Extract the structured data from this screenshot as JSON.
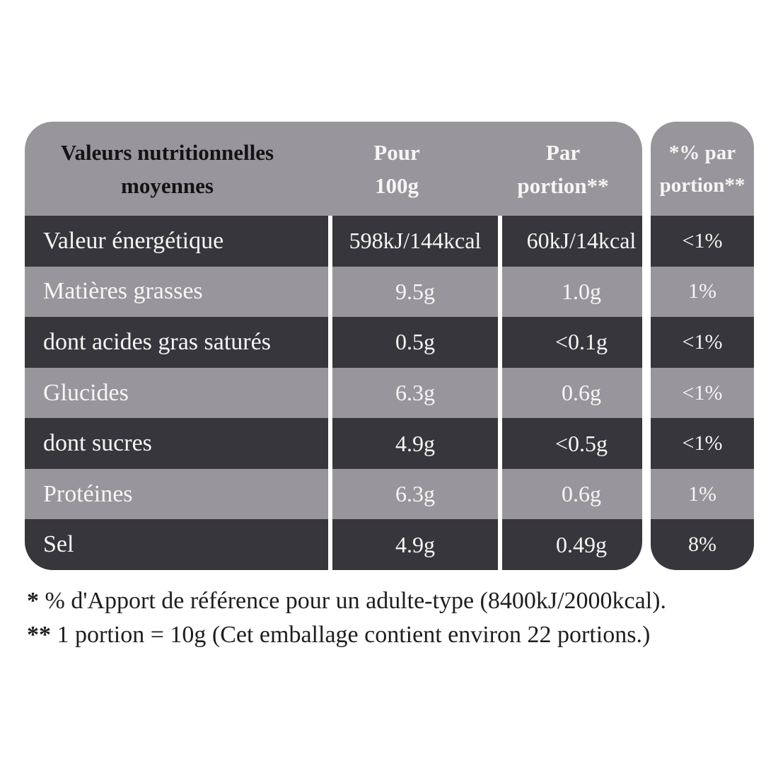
{
  "colors": {
    "row_dark": "#37363C",
    "row_light": "#98969C",
    "divider_white": "#FFFFFF",
    "header_label_text": "#131313",
    "table_text_light": "#F7F6F4",
    "footnote_text": "#1E1E1E",
    "page_background": "#FFFFFF"
  },
  "table": {
    "header": {
      "label_lines": [
        "Valeurs nutritionnelles",
        "moyennes"
      ],
      "per100_lines": [
        "Pour",
        "100g"
      ],
      "portion_lines": [
        "Par",
        "portion**"
      ],
      "pct_lines": [
        "*% par",
        "portion**"
      ]
    },
    "rows": [
      {
        "label": "Valeur énergétique",
        "per100": "598kJ/144kcal",
        "portion": "60kJ/14kcal",
        "pct": "<1%"
      },
      {
        "label": "Matières grasses",
        "per100": "9.5g",
        "portion": "1.0g",
        "pct": "1%"
      },
      {
        "label": "dont acides gras saturés",
        "per100": "0.5g",
        "portion": "<0.1g",
        "pct": "<1%"
      },
      {
        "label": "Glucides",
        "per100": "6.3g",
        "portion": "0.6g",
        "pct": "<1%"
      },
      {
        "label": "dont sucres",
        "per100": "4.9g",
        "portion": "<0.5g",
        "pct": "<1%"
      },
      {
        "label": "Protéines",
        "per100": "6.3g",
        "portion": "0.6g",
        "pct": "1%"
      },
      {
        "label": "Sel",
        "per100": "4.9g",
        "portion": "0.49g",
        "pct": "8%"
      }
    ]
  },
  "footnotes": [
    {
      "marker": "*",
      "text": " % d'Apport de référence pour un adulte-type (8400kJ/2000kcal)."
    },
    {
      "marker": "**",
      "text": " 1 portion = 10g (Cet emballage contient environ 22 portions.)"
    }
  ]
}
